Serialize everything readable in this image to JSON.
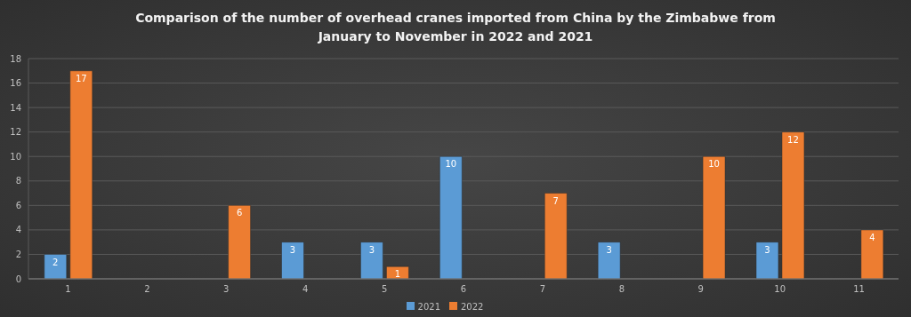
{
  "chart_data": {
    "type": "bar",
    "title": "Comparison of the number of overhead cranes imported from China by the Zimbabwe from January to November in 2022 and 2021",
    "categories": [
      "1",
      "2",
      "3",
      "4",
      "5",
      "6",
      "7",
      "8",
      "9",
      "10",
      "11"
    ],
    "series": [
      {
        "name": "2021",
        "color": "#5b9bd5",
        "values": [
          2,
          null,
          null,
          3,
          3,
          10,
          null,
          3,
          null,
          3,
          null
        ]
      },
      {
        "name": "2022",
        "color": "#ed7d31",
        "values": [
          17,
          null,
          6,
          null,
          1,
          null,
          7,
          null,
          10,
          12,
          4
        ]
      }
    ],
    "ylim": [
      0,
      18
    ],
    "yticks": [
      0,
      2,
      4,
      6,
      8,
      10,
      12,
      14,
      16,
      18
    ],
    "grid": true,
    "legend": "bottom",
    "data_labels": true
  }
}
